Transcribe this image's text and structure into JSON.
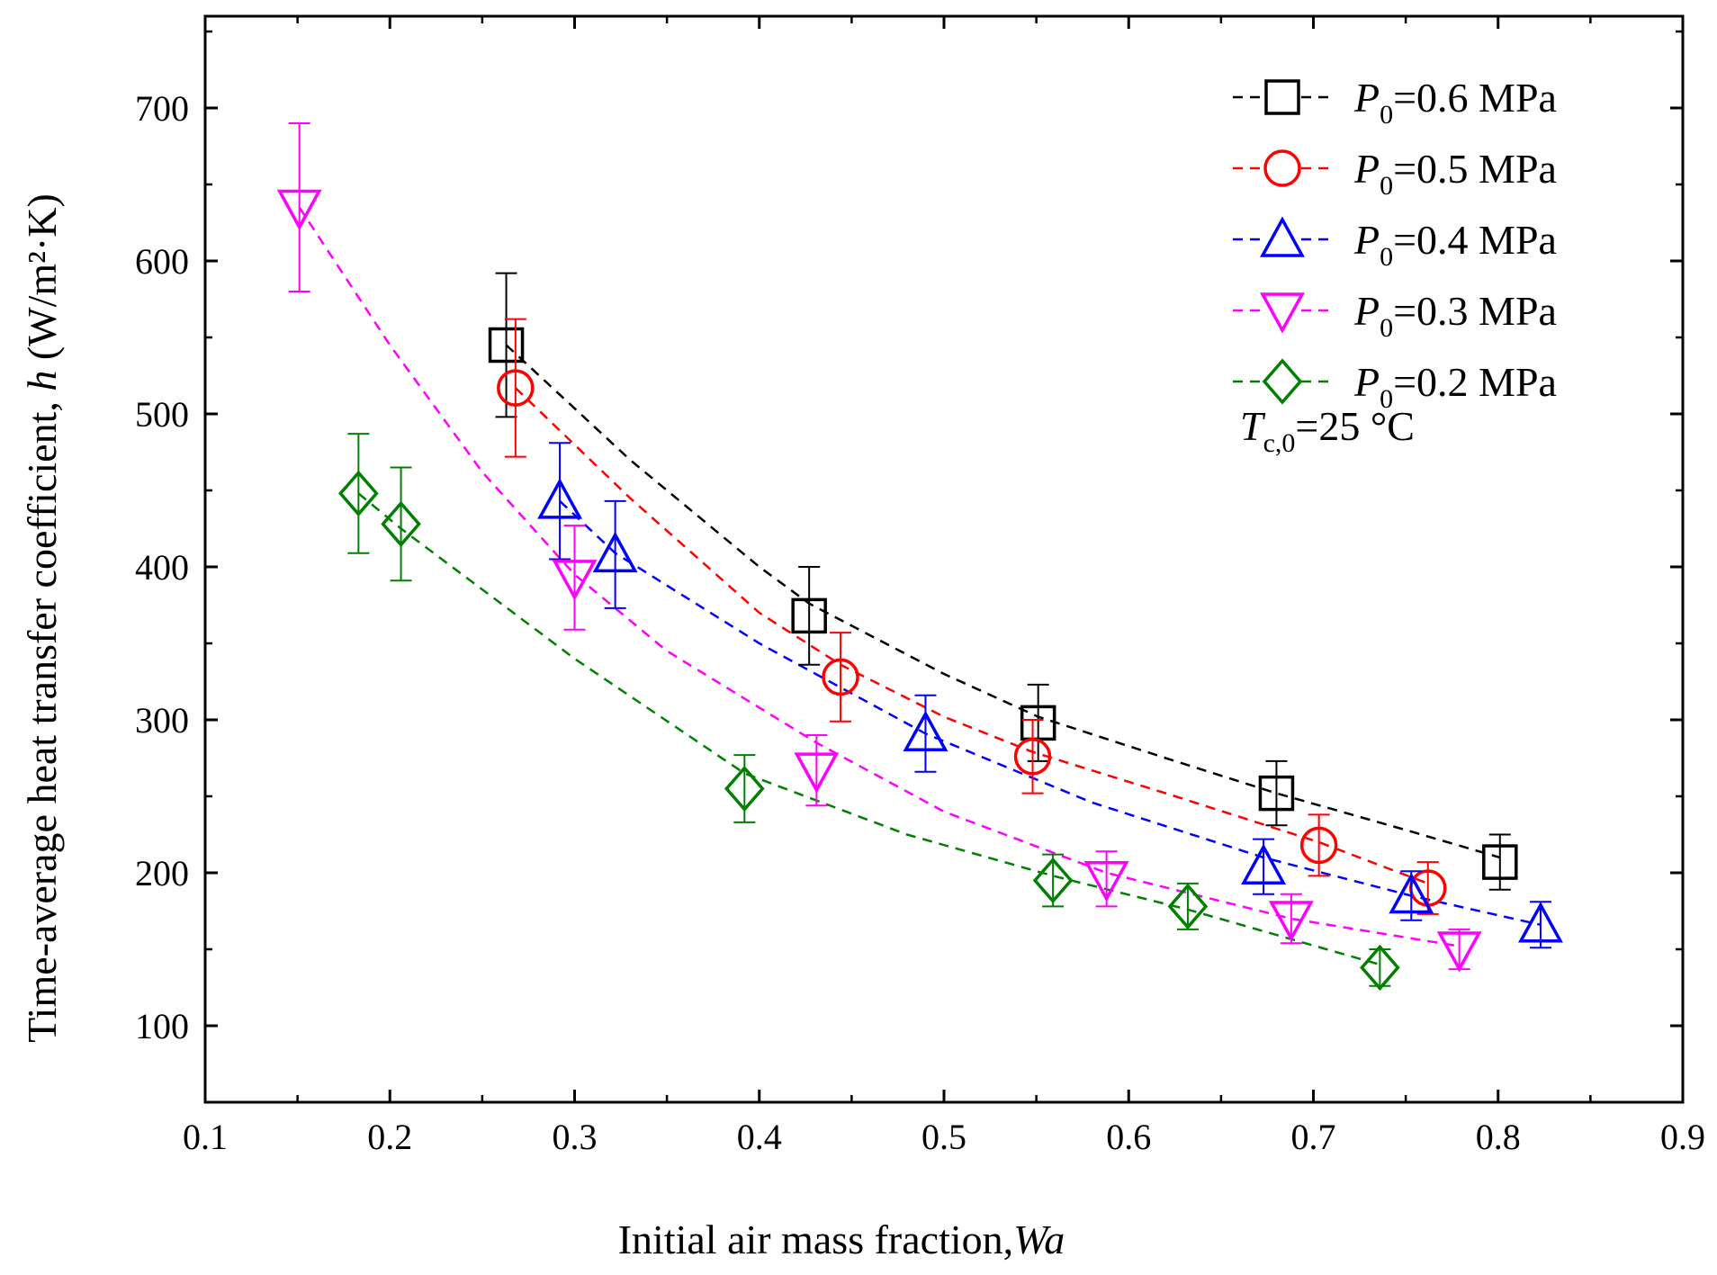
{
  "chart_data": {
    "type": "scatter",
    "title": "",
    "xlabel": "Initial air mass fraction,",
    "xlabel_italic": "Wa",
    "ylabel": "Time-average heat transfer coefficient,",
    "ylabel_italic": "h",
    "ylabel_unit": "(W/m²·K)",
    "xlim": [
      0.1,
      0.9
    ],
    "ylim": [
      50,
      760
    ],
    "xticks": [
      0.1,
      0.2,
      0.3,
      0.4,
      0.5,
      0.6,
      0.7,
      0.8,
      0.9
    ],
    "xtick_labels": [
      "0.1",
      "0.2",
      "0.3",
      "0.4",
      "0.5",
      "0.6",
      "0.7",
      "0.8",
      "0.9"
    ],
    "yticks": [
      100,
      200,
      300,
      400,
      500,
      600,
      700
    ],
    "ytick_labels": [
      "100",
      "200",
      "300",
      "400",
      "500",
      "600",
      "700"
    ],
    "legend_position": "top-right",
    "annotation": {
      "symbol": "T",
      "subscript": "c,0",
      "text": "=25 °C"
    },
    "series": [
      {
        "name": "P0=0.6 MPa",
        "label_symbol": "P",
        "label_subscript": "0",
        "label_text": "=0.6 MPa",
        "color": "#000000",
        "marker": "square",
        "x": [
          0.263,
          0.427,
          0.551,
          0.68,
          0.801
        ],
        "y": [
          545,
          368,
          298,
          252,
          207
        ],
        "err": [
          47,
          32,
          25,
          21,
          18
        ],
        "fit_x": [
          0.263,
          0.33,
          0.4,
          0.427,
          0.5,
          0.551,
          0.62,
          0.68,
          0.75,
          0.801
        ],
        "fit_y": [
          545,
          470,
          400,
          376,
          330,
          302,
          275,
          252,
          228,
          210
        ]
      },
      {
        "name": "P0=0.5 MPa",
        "label_symbol": "P",
        "label_subscript": "0",
        "label_text": "=0.5 MPa",
        "color": "#ff0000",
        "marker": "circle",
        "x": [
          0.268,
          0.444,
          0.548,
          0.703,
          0.762
        ],
        "y": [
          517,
          328,
          276,
          218,
          190
        ],
        "err": [
          45,
          29,
          24,
          20,
          17
        ],
        "fit_x": [
          0.268,
          0.33,
          0.4,
          0.444,
          0.5,
          0.548,
          0.62,
          0.703,
          0.762
        ],
        "fit_y": [
          517,
          445,
          370,
          336,
          302,
          279,
          252,
          220,
          193
        ]
      },
      {
        "name": "P0=0.4 MPa",
        "label_symbol": "P",
        "label_subscript": "0",
        "label_text": "=0.4 MPa",
        "color": "#0000ff",
        "marker": "triangle-up",
        "x": [
          0.292,
          0.322,
          0.49,
          0.673,
          0.753,
          0.823
        ],
        "y": [
          443,
          408,
          291,
          204,
          185,
          166
        ],
        "err": [
          38,
          35,
          25,
          18,
          16,
          15
        ],
        "fit_x": [
          0.292,
          0.322,
          0.4,
          0.49,
          0.58,
          0.673,
          0.753,
          0.823
        ],
        "fit_y": [
          443,
          409,
          350,
          291,
          246,
          210,
          185,
          166
        ]
      },
      {
        "name": "P0=0.3 MPa",
        "label_symbol": "P",
        "label_subscript": "0",
        "label_text": "=0.3 MPa",
        "color": "#ff00ff",
        "marker": "triangle-down",
        "x": [
          0.151,
          0.3,
          0.431,
          0.588,
          0.688,
          0.779
        ],
        "y": [
          635,
          393,
          267,
          196,
          170,
          150
        ],
        "err": [
          55,
          34,
          23,
          18,
          16,
          13
        ],
        "fit_x": [
          0.151,
          0.2,
          0.25,
          0.3,
          0.35,
          0.431,
          0.5,
          0.588,
          0.688,
          0.779
        ],
        "fit_y": [
          635,
          545,
          462,
          395,
          345,
          285,
          240,
          200,
          170,
          152
        ]
      },
      {
        "name": "P0=0.2 MPa",
        "label_symbol": "P",
        "label_subscript": "0",
        "label_text": "=0.2 MPa",
        "color": "#008000",
        "marker": "diamond",
        "x": [
          0.183,
          0.206,
          0.392,
          0.559,
          0.632,
          0.736
        ],
        "y": [
          448,
          428,
          255,
          195,
          178,
          138
        ],
        "err": [
          39,
          37,
          22,
          17,
          15,
          12
        ],
        "fit_x": [
          0.183,
          0.206,
          0.3,
          0.392,
          0.48,
          0.559,
          0.632,
          0.736
        ],
        "fit_y": [
          448,
          425,
          340,
          265,
          225,
          198,
          176,
          140
        ]
      }
    ]
  }
}
